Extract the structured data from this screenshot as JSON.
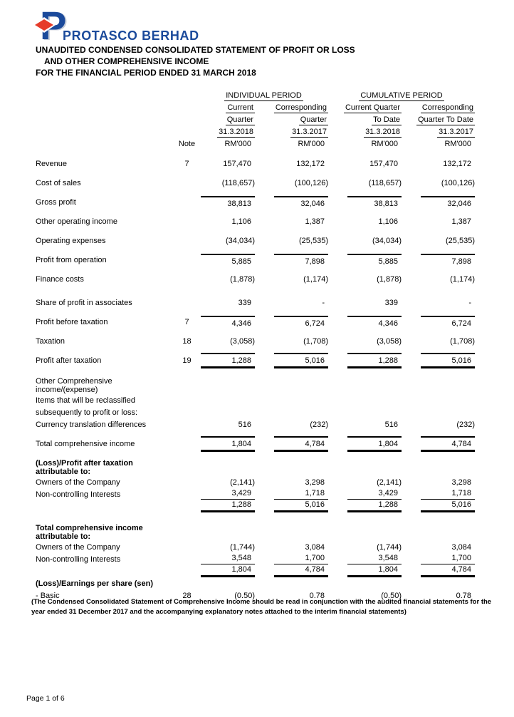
{
  "colors": {
    "brand_blue": "#1b4a9b",
    "brand_red": "#e63c2a",
    "text": "#000000"
  },
  "logo": {
    "letter": "P",
    "company": "PROTASCO BERHAD"
  },
  "title": {
    "line1": "UNAUDITED CONDENSED CONSOLIDATED STATEMENT OF PROFIT OR LOSS",
    "line2": "AND OTHER COMPREHENSIVE INCOME",
    "line3": "FOR THE FINANCIAL PERIOD ENDED 31 MARCH 2018"
  },
  "table": {
    "group_headers": [
      "INDIVIDUAL PERIOD",
      "CUMULATIVE PERIOD"
    ],
    "note_header": "Note",
    "unit": "RM'000",
    "col_headers": [
      [
        "Current",
        "Quarter",
        "31.3.2018"
      ],
      [
        "Corresponding",
        "Quarter",
        "31.3.2017"
      ],
      [
        "Current Quarter",
        "To Date",
        "31.3.2018"
      ],
      [
        "Corresponding",
        "Quarter To Date",
        "31.3.2017"
      ]
    ],
    "rows": [
      {
        "label": "Revenue",
        "note": "7",
        "values": [
          "157,470",
          "132,172",
          "157,470",
          "132,172"
        ],
        "gap": 8
      },
      {
        "label": "Cost of sales",
        "values": [
          "(118,657)",
          "(100,126)",
          "(118,657)",
          "(100,126)"
        ]
      },
      {
        "label": "Gross profit",
        "values": [
          "38,813",
          "32,046",
          "38,813",
          "32,046"
        ],
        "line_top": true
      },
      {
        "label": "Other operating income",
        "values": [
          "1,106",
          "1,387",
          "1,106",
          "1,387"
        ]
      },
      {
        "label": "Operating expenses",
        "values": [
          "(34,034)",
          "(25,535)",
          "(34,034)",
          "(25,535)"
        ]
      },
      {
        "label": "Profit from operation",
        "values": [
          "5,885",
          "7,898",
          "5,885",
          "7,898"
        ],
        "line_top": true
      },
      {
        "label": "Finance costs",
        "values": [
          "(1,878)",
          "(1,174)",
          "(1,878)",
          "(1,174)"
        ]
      },
      {
        "label": "Share of profit in associates",
        "values": [
          "339",
          "-",
          "339",
          "-"
        ],
        "gap": 6
      },
      {
        "label": "Profit before taxation",
        "note": "7",
        "values": [
          "4,346",
          "6,724",
          "4,346",
          "6,724"
        ],
        "line_top": true
      },
      {
        "label": "Taxation",
        "note": "18",
        "values": [
          "(3,058)",
          "(1,708)",
          "(3,058)",
          "(1,708)"
        ]
      },
      {
        "label": "Profit after taxation",
        "note": "19",
        "values": [
          "1,288",
          "5,016",
          "1,288",
          "5,016"
        ],
        "line_top": true,
        "line_bottom": "thick"
      },
      {
        "label": "Other Comprehensive income/(expense)",
        "tight": true,
        "gap": 10
      },
      {
        "label": "Items that will be reclassified",
        "tight": true
      },
      {
        "label": "subsequently to profit or loss:",
        "tight": true
      },
      {
        "label": "Currency translation differences",
        "values": [
          "516",
          "(232)",
          "516",
          "(232)"
        ],
        "tight": true
      },
      {
        "label": "Total comprehensive income",
        "values": [
          "1,804",
          "4,784",
          "1,804",
          "4,784"
        ],
        "line_top": true,
        "line_bottom": "thick",
        "gap": 5
      },
      {
        "label": "(Loss)/Profit after taxation attributable to:",
        "bold": true,
        "tight": true,
        "gap": 8
      },
      {
        "label": "Owners of the Company",
        "values": [
          "(2,141)",
          "3,298",
          "(2,141)",
          "3,298"
        ],
        "tight": true
      },
      {
        "label": "Non-controlling Interests",
        "values": [
          "3,429",
          "1,718",
          "3,429",
          "1,718"
        ],
        "tight": true,
        "line_bottom": "thin"
      },
      {
        "label": "",
        "values": [
          "1,288",
          "5,016",
          "1,288",
          "5,016"
        ],
        "tight": true,
        "line_bottom": "thick"
      },
      {
        "label": "Total comprehensive income attributable to:",
        "bold": true,
        "tight": true,
        "gap": 16
      },
      {
        "label": "Owners of the Company",
        "values": [
          "(1,744)",
          "3,084",
          "(1,744)",
          "3,084"
        ],
        "tight": true
      },
      {
        "label": "Non-controlling Interests",
        "values": [
          "3,548",
          "1,700",
          "3,548",
          "1,700"
        ],
        "tight": true,
        "line_bottom": "thin"
      },
      {
        "label": "",
        "values": [
          "1,804",
          "4,784",
          "1,804",
          "4,784"
        ],
        "tight": true,
        "line_bottom": "thick"
      },
      {
        "label": "(Loss)/Earnings per share (sen)",
        "bold": true,
        "tight": true
      },
      {
        "label": "- Basic",
        "note": "28",
        "values": [
          "(0.50)",
          "0.78",
          "(0.50)",
          "0.78"
        ],
        "tight": true
      }
    ]
  },
  "footnote": {
    "line1": "(The Condensed Consolidated Statement of Comprehensive Income should be read in conjunction with the audited financial statements for the",
    "line2": "year ended 31 December 2017 and the accompanying explanatory notes attached to the interim financial statements)"
  },
  "page_label": "Page 1 of 6"
}
